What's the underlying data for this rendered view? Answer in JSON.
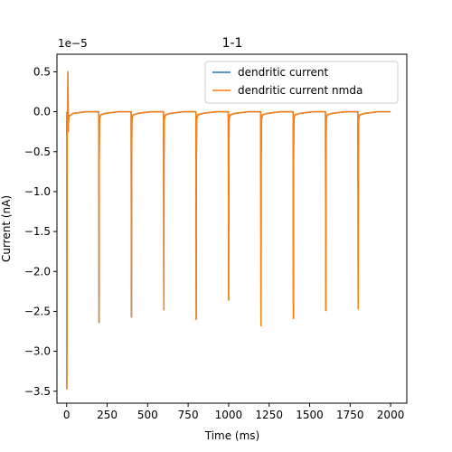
{
  "chart_data": {
    "type": "line",
    "title": "1-1",
    "xlabel": "Time (ms)",
    "ylabel": "Current (nA)",
    "y_scale_label": "1e−5",
    "xlim": [
      -60,
      2100
    ],
    "ylim": [
      -3.65,
      0.72
    ],
    "x_ticks": [
      0,
      250,
      500,
      750,
      1000,
      1250,
      1500,
      1750,
      2000
    ],
    "x_tick_labels": [
      "0",
      "250",
      "500",
      "750",
      "1000",
      "1250",
      "1500",
      "1750",
      "2000"
    ],
    "y_ticks": [
      0.5,
      0.0,
      -0.5,
      -1.0,
      -1.5,
      -2.0,
      -2.5,
      -3.0,
      -3.5
    ],
    "y_tick_labels": [
      "0.5",
      "0.0",
      "−0.5",
      "−1.0",
      "−1.5",
      "−2.0",
      "−2.5",
      "−3.0",
      "−3.5"
    ],
    "grid": false,
    "legend_position": "top-right",
    "y_units_multiplier": 1e-05,
    "series": [
      {
        "name": "dendritic current",
        "color": "#1f77b4",
        "x": [
          0,
          1,
          2,
          3,
          6,
          8,
          10,
          12,
          14,
          20,
          40,
          80,
          120,
          160,
          198,
          200,
          201,
          203,
          205,
          210,
          240,
          280,
          320,
          360,
          398,
          400,
          401,
          403,
          405,
          410,
          440,
          480,
          520,
          560,
          598,
          600,
          601,
          603,
          605,
          610,
          640,
          680,
          720,
          760,
          798,
          800,
          801,
          803,
          805,
          810,
          840,
          880,
          920,
          960,
          998,
          1000,
          1001,
          1003,
          1005,
          1010,
          1040,
          1080,
          1120,
          1160,
          1198,
          1200,
          1201,
          1203,
          1205,
          1210,
          1240,
          1280,
          1320,
          1360,
          1398,
          1400,
          1401,
          1403,
          1405,
          1410,
          1440,
          1480,
          1520,
          1560,
          1598,
          1600,
          1601,
          1603,
          1605,
          1610,
          1640,
          1680,
          1720,
          1760,
          1798,
          1800,
          1801,
          1803,
          1805,
          1810,
          1840,
          1880,
          1920,
          1960,
          2000
        ],
        "values": [
          0.0,
          -3.47,
          -1.5,
          -0.1,
          0.0,
          0.5,
          -0.25,
          -0.1,
          -0.05,
          -0.05,
          -0.02,
          -0.01,
          0.0,
          0.0,
          0.0,
          -2.64,
          -0.6,
          -0.1,
          -0.07,
          -0.04,
          -0.02,
          -0.01,
          0.0,
          0.0,
          0.0,
          -2.57,
          -0.6,
          -0.1,
          -0.07,
          -0.04,
          -0.02,
          -0.01,
          0.0,
          0.0,
          0.0,
          -2.48,
          -0.6,
          -0.1,
          -0.07,
          -0.04,
          -0.02,
          -0.01,
          0.0,
          0.0,
          0.0,
          -2.6,
          -0.6,
          -0.1,
          -0.07,
          -0.04,
          -0.02,
          -0.01,
          0.0,
          0.0,
          0.0,
          -2.36,
          -0.6,
          -0.1,
          -0.07,
          -0.04,
          -0.02,
          -0.01,
          0.0,
          0.0,
          0.0,
          -2.68,
          -0.6,
          -0.1,
          -0.07,
          -0.04,
          -0.02,
          -0.01,
          0.0,
          0.0,
          0.0,
          -2.59,
          -0.6,
          -0.1,
          -0.07,
          -0.04,
          -0.02,
          -0.01,
          0.0,
          0.0,
          0.0,
          -2.49,
          -0.6,
          -0.1,
          -0.07,
          -0.04,
          -0.02,
          -0.01,
          0.0,
          0.0,
          0.0,
          -2.47,
          -0.6,
          -0.1,
          -0.07,
          -0.04,
          -0.02,
          -0.01,
          0.0,
          0.0,
          0.0
        ]
      },
      {
        "name": "dendritic current nmda",
        "color": "#ff7f0e",
        "x": [
          0,
          1,
          2,
          3,
          6,
          8,
          10,
          12,
          14,
          20,
          40,
          80,
          120,
          160,
          198,
          200,
          201,
          203,
          205,
          210,
          240,
          280,
          320,
          360,
          398,
          400,
          401,
          403,
          405,
          410,
          440,
          480,
          520,
          560,
          598,
          600,
          601,
          603,
          605,
          610,
          640,
          680,
          720,
          760,
          798,
          800,
          801,
          803,
          805,
          810,
          840,
          880,
          920,
          960,
          998,
          1000,
          1001,
          1003,
          1005,
          1010,
          1040,
          1080,
          1120,
          1160,
          1198,
          1200,
          1201,
          1203,
          1205,
          1210,
          1240,
          1280,
          1320,
          1360,
          1398,
          1400,
          1401,
          1403,
          1405,
          1410,
          1440,
          1480,
          1520,
          1560,
          1598,
          1600,
          1601,
          1603,
          1605,
          1610,
          1640,
          1680,
          1720,
          1760,
          1798,
          1800,
          1801,
          1803,
          1805,
          1810,
          1840,
          1880,
          1920,
          1960,
          2000
        ],
        "values": [
          0.0,
          -3.47,
          -1.5,
          -0.1,
          0.0,
          0.5,
          -0.25,
          -0.1,
          -0.05,
          -0.05,
          -0.02,
          -0.01,
          0.0,
          0.0,
          0.0,
          -2.64,
          -0.6,
          -0.1,
          -0.07,
          -0.04,
          -0.02,
          -0.01,
          0.0,
          0.0,
          0.0,
          -2.57,
          -0.6,
          -0.1,
          -0.07,
          -0.04,
          -0.02,
          -0.01,
          0.0,
          0.0,
          0.0,
          -2.48,
          -0.6,
          -0.1,
          -0.07,
          -0.04,
          -0.02,
          -0.01,
          0.0,
          0.0,
          0.0,
          -2.6,
          -0.6,
          -0.1,
          -0.07,
          -0.04,
          -0.02,
          -0.01,
          0.0,
          0.0,
          0.0,
          -2.36,
          -0.6,
          -0.1,
          -0.07,
          -0.04,
          -0.02,
          -0.01,
          0.0,
          0.0,
          0.0,
          -2.68,
          -0.6,
          -0.1,
          -0.07,
          -0.04,
          -0.02,
          -0.01,
          0.0,
          0.0,
          0.0,
          -2.59,
          -0.6,
          -0.1,
          -0.07,
          -0.04,
          -0.02,
          -0.01,
          0.0,
          0.0,
          0.0,
          -2.49,
          -0.6,
          -0.1,
          -0.07,
          -0.04,
          -0.02,
          -0.01,
          0.0,
          0.0,
          0.0,
          -2.47,
          -0.6,
          -0.1,
          -0.07,
          -0.04,
          -0.02,
          -0.01,
          0.0,
          0.0,
          0.0
        ]
      }
    ]
  }
}
